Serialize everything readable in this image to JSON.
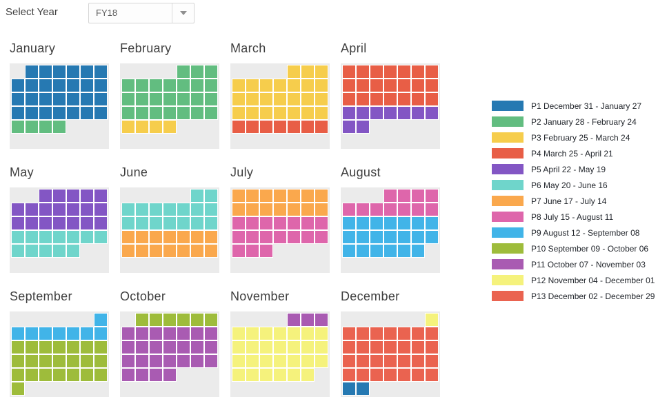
{
  "year_selector": {
    "label": "Select Year",
    "value": "FY18"
  },
  "chart_data": {
    "type": "heatmap",
    "subtype": "fiscal-period-calendar",
    "title": "",
    "week_columns": 7,
    "legend_position": "right",
    "empty_cell_color": "#ebebeb",
    "periods": [
      {
        "id": "P1",
        "label": "P1 December 31 - January 27",
        "color": "#2679B2"
      },
      {
        "id": "P2",
        "label": "P2 January 28 - February 24",
        "color": "#62BD80"
      },
      {
        "id": "P3",
        "label": "P3 February 25 - March 24",
        "color": "#F6CD4C"
      },
      {
        "id": "P4",
        "label": "P4 March 25 - April 21",
        "color": "#E85E46"
      },
      {
        "id": "P5",
        "label": "P5 April 22 - May 19",
        "color": "#8356C4"
      },
      {
        "id": "P6",
        "label": "P6 May 20 - June 16",
        "color": "#6FD5CB"
      },
      {
        "id": "P7",
        "label": "P7 June 17 - July 14",
        "color": "#FAA84D"
      },
      {
        "id": "P8",
        "label": "P8 July 15 - August 11",
        "color": "#DE66AB"
      },
      {
        "id": "P9",
        "label": "P9 August 12 - September 08",
        "color": "#41B4E8"
      },
      {
        "id": "P10",
        "label": "P10 September 09 - October 06",
        "color": "#9EBC3B"
      },
      {
        "id": "P11",
        "label": "P11 October 07 - November 03",
        "color": "#A95BB2"
      },
      {
        "id": "P12",
        "label": "P12 November 04 - December 01",
        "color": "#F5F27C"
      },
      {
        "id": "P13",
        "label": "P13 December 02 - December 29",
        "color": "#EA6350"
      }
    ],
    "months": [
      {
        "name": "January",
        "weeks": [
          [
            "",
            "P1",
            "P1",
            "P1",
            "P1",
            "P1",
            "P1"
          ],
          [
            "P1",
            "P1",
            "P1",
            "P1",
            "P1",
            "P1",
            "P1"
          ],
          [
            "P1",
            "P1",
            "P1",
            "P1",
            "P1",
            "P1",
            "P1"
          ],
          [
            "P1",
            "P1",
            "P1",
            "P1",
            "P1",
            "P1",
            "P1"
          ],
          [
            "P2",
            "P2",
            "P2",
            "P2",
            "",
            "",
            ""
          ],
          [
            "",
            "",
            "",
            "",
            "",
            "",
            ""
          ]
        ]
      },
      {
        "name": "February",
        "weeks": [
          [
            "",
            "",
            "",
            "",
            "P2",
            "P2",
            "P2"
          ],
          [
            "P2",
            "P2",
            "P2",
            "P2",
            "P2",
            "P2",
            "P2"
          ],
          [
            "P2",
            "P2",
            "P2",
            "P2",
            "P2",
            "P2",
            "P2"
          ],
          [
            "P2",
            "P2",
            "P2",
            "P2",
            "P2",
            "P2",
            "P2"
          ],
          [
            "P3",
            "P3",
            "P3",
            "P3",
            "",
            "",
            ""
          ],
          [
            "",
            "",
            "",
            "",
            "",
            "",
            ""
          ]
        ]
      },
      {
        "name": "March",
        "weeks": [
          [
            "",
            "",
            "",
            "",
            "P3",
            "P3",
            "P3"
          ],
          [
            "P3",
            "P3",
            "P3",
            "P3",
            "P3",
            "P3",
            "P3"
          ],
          [
            "P3",
            "P3",
            "P3",
            "P3",
            "P3",
            "P3",
            "P3"
          ],
          [
            "P3",
            "P3",
            "P3",
            "P3",
            "P3",
            "P3",
            "P3"
          ],
          [
            "P4",
            "P4",
            "P4",
            "P4",
            "P4",
            "P4",
            "P4"
          ],
          [
            "",
            "",
            "",
            "",
            "",
            "",
            ""
          ]
        ]
      },
      {
        "name": "April",
        "weeks": [
          [
            "P4",
            "P4",
            "P4",
            "P4",
            "P4",
            "P4",
            "P4"
          ],
          [
            "P4",
            "P4",
            "P4",
            "P4",
            "P4",
            "P4",
            "P4"
          ],
          [
            "P4",
            "P4",
            "P4",
            "P4",
            "P4",
            "P4",
            "P4"
          ],
          [
            "P5",
            "P5",
            "P5",
            "P5",
            "P5",
            "P5",
            "P5"
          ],
          [
            "P5",
            "P5",
            "",
            "",
            "",
            "",
            ""
          ],
          [
            "",
            "",
            "",
            "",
            "",
            "",
            ""
          ]
        ]
      },
      {
        "name": "May",
        "weeks": [
          [
            "",
            "",
            "P5",
            "P5",
            "P5",
            "P5",
            "P5"
          ],
          [
            "P5",
            "P5",
            "P5",
            "P5",
            "P5",
            "P5",
            "P5"
          ],
          [
            "P5",
            "P5",
            "P5",
            "P5",
            "P5",
            "P5",
            "P5"
          ],
          [
            "P6",
            "P6",
            "P6",
            "P6",
            "P6",
            "P6",
            "P6"
          ],
          [
            "P6",
            "P6",
            "P6",
            "P6",
            "P6",
            "",
            ""
          ],
          [
            "",
            "",
            "",
            "",
            "",
            "",
            ""
          ]
        ]
      },
      {
        "name": "June",
        "weeks": [
          [
            "",
            "",
            "",
            "",
            "",
            "P6",
            "P6"
          ],
          [
            "P6",
            "P6",
            "P6",
            "P6",
            "P6",
            "P6",
            "P6"
          ],
          [
            "P6",
            "P6",
            "P6",
            "P6",
            "P6",
            "P6",
            "P6"
          ],
          [
            "P7",
            "P7",
            "P7",
            "P7",
            "P7",
            "P7",
            "P7"
          ],
          [
            "P7",
            "P7",
            "P7",
            "P7",
            "P7",
            "P7",
            "P7"
          ],
          [
            "",
            "",
            "",
            "",
            "",
            "",
            ""
          ]
        ]
      },
      {
        "name": "July",
        "weeks": [
          [
            "P7",
            "P7",
            "P7",
            "P7",
            "P7",
            "P7",
            "P7"
          ],
          [
            "P7",
            "P7",
            "P7",
            "P7",
            "P7",
            "P7",
            "P7"
          ],
          [
            "P8",
            "P8",
            "P8",
            "P8",
            "P8",
            "P8",
            "P8"
          ],
          [
            "P8",
            "P8",
            "P8",
            "P8",
            "P8",
            "P8",
            "P8"
          ],
          [
            "P8",
            "P8",
            "P8",
            "",
            "",
            "",
            ""
          ],
          [
            "",
            "",
            "",
            "",
            "",
            "",
            ""
          ]
        ]
      },
      {
        "name": "August",
        "weeks": [
          [
            "",
            "",
            "",
            "P8",
            "P8",
            "P8",
            "P8"
          ],
          [
            "P8",
            "P8",
            "P8",
            "P8",
            "P8",
            "P8",
            "P8"
          ],
          [
            "P9",
            "P9",
            "P9",
            "P9",
            "P9",
            "P9",
            "P9"
          ],
          [
            "P9",
            "P9",
            "P9",
            "P9",
            "P9",
            "P9",
            "P9"
          ],
          [
            "P9",
            "P9",
            "P9",
            "P9",
            "P9",
            "P9",
            ""
          ],
          [
            "",
            "",
            "",
            "",
            "",
            "",
            ""
          ]
        ]
      },
      {
        "name": "September",
        "weeks": [
          [
            "",
            "",
            "",
            "",
            "",
            "",
            "P9"
          ],
          [
            "P9",
            "P9",
            "P9",
            "P9",
            "P9",
            "P9",
            "P9"
          ],
          [
            "P10",
            "P10",
            "P10",
            "P10",
            "P10",
            "P10",
            "P10"
          ],
          [
            "P10",
            "P10",
            "P10",
            "P10",
            "P10",
            "P10",
            "P10"
          ],
          [
            "P10",
            "P10",
            "P10",
            "P10",
            "P10",
            "P10",
            "P10"
          ],
          [
            "P10",
            "",
            "",
            "",
            "",
            "",
            ""
          ]
        ]
      },
      {
        "name": "October",
        "weeks": [
          [
            "",
            "P10",
            "P10",
            "P10",
            "P10",
            "P10",
            "P10"
          ],
          [
            "P11",
            "P11",
            "P11",
            "P11",
            "P11",
            "P11",
            "P11"
          ],
          [
            "P11",
            "P11",
            "P11",
            "P11",
            "P11",
            "P11",
            "P11"
          ],
          [
            "P11",
            "P11",
            "P11",
            "P11",
            "P11",
            "P11",
            "P11"
          ],
          [
            "P11",
            "P11",
            "P11",
            "P11",
            "",
            "",
            ""
          ],
          [
            "",
            "",
            "",
            "",
            "",
            "",
            ""
          ]
        ]
      },
      {
        "name": "November",
        "weeks": [
          [
            "",
            "",
            "",
            "",
            "P11",
            "P11",
            "P11"
          ],
          [
            "P12",
            "P12",
            "P12",
            "P12",
            "P12",
            "P12",
            "P12"
          ],
          [
            "P12",
            "P12",
            "P12",
            "P12",
            "P12",
            "P12",
            "P12"
          ],
          [
            "P12",
            "P12",
            "P12",
            "P12",
            "P12",
            "P12",
            "P12"
          ],
          [
            "P12",
            "P12",
            "P12",
            "P12",
            "P12",
            "P12",
            ""
          ],
          [
            "",
            "",
            "",
            "",
            "",
            "",
            ""
          ]
        ]
      },
      {
        "name": "December",
        "weeks": [
          [
            "",
            "",
            "",
            "",
            "",
            "",
            "P12"
          ],
          [
            "P13",
            "P13",
            "P13",
            "P13",
            "P13",
            "P13",
            "P13"
          ],
          [
            "P13",
            "P13",
            "P13",
            "P13",
            "P13",
            "P13",
            "P13"
          ],
          [
            "P13",
            "P13",
            "P13",
            "P13",
            "P13",
            "P13",
            "P13"
          ],
          [
            "P13",
            "P13",
            "P13",
            "P13",
            "P13",
            "P13",
            "P13"
          ],
          [
            "P1",
            "P1",
            "",
            "",
            "",
            "",
            ""
          ]
        ]
      }
    ]
  }
}
